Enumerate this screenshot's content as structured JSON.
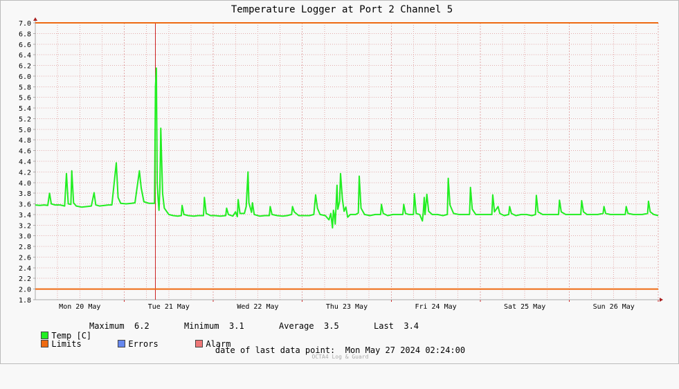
{
  "colors": {
    "temp": "#22ee22",
    "limits": "#ee6a11",
    "errors": "#6688ee",
    "alarm": "#ee7777",
    "grid": "#e2a9a9",
    "axis": "#aaaaaa",
    "marker": "#cc2222"
  },
  "legend": {
    "temp_label": "Temp [C]",
    "max_label": "Maximum",
    "max_value": "6.2",
    "min_label": "Minimum",
    "min_value": "3.1",
    "avg_label": "Average",
    "avg_value": "3.5",
    "last_label": "Last",
    "last_value": "3.4",
    "limits_label": "Limits",
    "errors_label": "Errors",
    "alarm_label": "Alarm"
  },
  "footer": {
    "last_point_label": "date of last data point:",
    "last_point_value": "Mon May 27 2024 02:24:00",
    "watermark": "OCTA4 Log & Guard"
  },
  "chart_data": {
    "type": "line",
    "title": "Temperature Logger at Port 2 Channel 5",
    "xlabel": "",
    "ylabel": "",
    "ylim": [
      1.8,
      7.0
    ],
    "y_ticks": [
      "1.8",
      "2.0",
      "2.2",
      "2.4",
      "2.6",
      "2.8",
      "3.0",
      "3.2",
      "3.4",
      "3.6",
      "3.8",
      "4.0",
      "4.2",
      "4.4",
      "4.6",
      "4.8",
      "5.0",
      "5.2",
      "5.4",
      "5.6",
      "5.8",
      "6.0",
      "6.2",
      "6.4",
      "6.6",
      "6.8",
      "7.0"
    ],
    "x_range_days": [
      0,
      7.0
    ],
    "x_tick_labels": [
      {
        "day": 0.5,
        "label": "Mon 20 May"
      },
      {
        "day": 1.5,
        "label": "Tue 21 May"
      },
      {
        "day": 2.5,
        "label": "Wed 22 May"
      },
      {
        "day": 3.5,
        "label": "Thu 23 May"
      },
      {
        "day": 4.5,
        "label": "Fri 24 May"
      },
      {
        "day": 5.5,
        "label": "Sat 25 May"
      },
      {
        "day": 6.5,
        "label": "Sun 26 May"
      }
    ],
    "grid": true,
    "limits": [
      2.0,
      7.0
    ],
    "marker_day": 1.35,
    "series": [
      {
        "name": "Temp [C]",
        "points": [
          [
            0.0,
            3.58
          ],
          [
            0.05,
            3.57
          ],
          [
            0.1,
            3.58
          ],
          [
            0.14,
            3.57
          ],
          [
            0.16,
            3.8
          ],
          [
            0.18,
            3.6
          ],
          [
            0.22,
            3.58
          ],
          [
            0.28,
            3.58
          ],
          [
            0.33,
            3.56
          ],
          [
            0.35,
            4.17
          ],
          [
            0.37,
            3.6
          ],
          [
            0.4,
            3.59
          ],
          [
            0.41,
            4.22
          ],
          [
            0.43,
            3.62
          ],
          [
            0.46,
            3.56
          ],
          [
            0.52,
            3.54
          ],
          [
            0.58,
            3.55
          ],
          [
            0.63,
            3.56
          ],
          [
            0.66,
            3.81
          ],
          [
            0.68,
            3.58
          ],
          [
            0.72,
            3.56
          ],
          [
            0.78,
            3.57
          ],
          [
            0.82,
            3.58
          ],
          [
            0.86,
            3.58
          ],
          [
            0.91,
            4.37
          ],
          [
            0.93,
            3.72
          ],
          [
            0.96,
            3.61
          ],
          [
            1.02,
            3.6
          ],
          [
            1.08,
            3.61
          ],
          [
            1.12,
            3.62
          ],
          [
            1.17,
            4.22
          ],
          [
            1.19,
            3.9
          ],
          [
            1.22,
            3.64
          ],
          [
            1.28,
            3.61
          ],
          [
            1.34,
            3.61
          ],
          [
            1.35,
            5.8
          ],
          [
            1.36,
            6.15
          ],
          [
            1.37,
            4.0
          ],
          [
            1.38,
            3.7
          ],
          [
            1.39,
            3.48
          ],
          [
            1.4,
            3.9
          ],
          [
            1.41,
            5.02
          ],
          [
            1.42,
            4.4
          ],
          [
            1.43,
            3.8
          ],
          [
            1.45,
            3.52
          ],
          [
            1.5,
            3.4
          ],
          [
            1.55,
            3.38
          ],
          [
            1.6,
            3.37
          ],
          [
            1.64,
            3.38
          ],
          [
            1.65,
            3.57
          ],
          [
            1.67,
            3.4
          ],
          [
            1.72,
            3.38
          ],
          [
            1.78,
            3.37
          ],
          [
            1.83,
            3.38
          ],
          [
            1.89,
            3.38
          ],
          [
            1.9,
            3.72
          ],
          [
            1.92,
            3.42
          ],
          [
            1.97,
            3.38
          ],
          [
            2.02,
            3.38
          ],
          [
            2.08,
            3.37
          ],
          [
            2.14,
            3.38
          ],
          [
            2.15,
            3.52
          ],
          [
            2.17,
            3.4
          ],
          [
            2.22,
            3.37
          ],
          [
            2.25,
            3.45
          ],
          [
            2.27,
            3.36
          ],
          [
            2.28,
            3.68
          ],
          [
            2.3,
            3.42
          ],
          [
            2.35,
            3.42
          ],
          [
            2.37,
            3.55
          ],
          [
            2.39,
            4.2
          ],
          [
            2.4,
            3.62
          ],
          [
            2.43,
            3.44
          ],
          [
            2.44,
            3.62
          ],
          [
            2.46,
            3.4
          ],
          [
            2.52,
            3.37
          ],
          [
            2.58,
            3.38
          ],
          [
            2.63,
            3.38
          ],
          [
            2.64,
            3.55
          ],
          [
            2.66,
            3.4
          ],
          [
            2.72,
            3.38
          ],
          [
            2.78,
            3.37
          ],
          [
            2.83,
            3.38
          ],
          [
            2.88,
            3.4
          ],
          [
            2.89,
            3.55
          ],
          [
            2.91,
            3.45
          ],
          [
            2.96,
            3.38
          ],
          [
            3.02,
            3.38
          ],
          [
            3.08,
            3.38
          ],
          [
            3.13,
            3.4
          ],
          [
            3.15,
            3.77
          ],
          [
            3.17,
            3.52
          ],
          [
            3.2,
            3.4
          ],
          [
            3.26,
            3.38
          ],
          [
            3.3,
            3.3
          ],
          [
            3.32,
            3.42
          ],
          [
            3.34,
            3.15
          ],
          [
            3.35,
            3.48
          ],
          [
            3.36,
            3.4
          ],
          [
            3.37,
            3.22
          ],
          [
            3.38,
            3.58
          ],
          [
            3.39,
            3.95
          ],
          [
            3.4,
            3.5
          ],
          [
            3.42,
            3.65
          ],
          [
            3.43,
            4.17
          ],
          [
            3.45,
            3.7
          ],
          [
            3.47,
            3.46
          ],
          [
            3.49,
            3.54
          ],
          [
            3.51,
            3.35
          ],
          [
            3.54,
            3.4
          ],
          [
            3.6,
            3.4
          ],
          [
            3.63,
            3.43
          ],
          [
            3.64,
            4.12
          ],
          [
            3.66,
            3.52
          ],
          [
            3.7,
            3.4
          ],
          [
            3.76,
            3.38
          ],
          [
            3.82,
            3.4
          ],
          [
            3.88,
            3.4
          ],
          [
            3.89,
            3.59
          ],
          [
            3.91,
            3.42
          ],
          [
            3.96,
            3.38
          ],
          [
            4.02,
            3.4
          ],
          [
            4.08,
            3.4
          ],
          [
            4.13,
            3.4
          ],
          [
            4.14,
            3.59
          ],
          [
            4.16,
            3.42
          ],
          [
            4.2,
            3.4
          ],
          [
            4.25,
            3.4
          ],
          [
            4.26,
            3.79
          ],
          [
            4.28,
            3.42
          ],
          [
            4.32,
            3.4
          ],
          [
            4.35,
            3.28
          ],
          [
            4.36,
            3.45
          ],
          [
            4.37,
            3.72
          ],
          [
            4.38,
            3.4
          ],
          [
            4.4,
            3.78
          ],
          [
            4.42,
            3.46
          ],
          [
            4.46,
            3.4
          ],
          [
            4.52,
            3.4
          ],
          [
            4.58,
            3.38
          ],
          [
            4.63,
            3.4
          ],
          [
            4.64,
            4.08
          ],
          [
            4.66,
            3.58
          ],
          [
            4.7,
            3.42
          ],
          [
            4.76,
            3.4
          ],
          [
            4.82,
            3.4
          ],
          [
            4.88,
            3.4
          ],
          [
            4.89,
            3.91
          ],
          [
            4.91,
            3.5
          ],
          [
            4.95,
            3.4
          ],
          [
            5.02,
            3.4
          ],
          [
            5.08,
            3.4
          ],
          [
            5.13,
            3.4
          ],
          [
            5.14,
            3.77
          ],
          [
            5.16,
            3.45
          ],
          [
            5.2,
            3.55
          ],
          [
            5.22,
            3.42
          ],
          [
            5.27,
            3.38
          ],
          [
            5.32,
            3.4
          ],
          [
            5.33,
            3.55
          ],
          [
            5.35,
            3.42
          ],
          [
            5.4,
            3.38
          ],
          [
            5.46,
            3.4
          ],
          [
            5.52,
            3.4
          ],
          [
            5.58,
            3.38
          ],
          [
            5.62,
            3.4
          ],
          [
            5.63,
            3.76
          ],
          [
            5.65,
            3.45
          ],
          [
            5.7,
            3.4
          ],
          [
            5.76,
            3.4
          ],
          [
            5.82,
            3.4
          ],
          [
            5.88,
            3.4
          ],
          [
            5.89,
            3.67
          ],
          [
            5.91,
            3.45
          ],
          [
            5.96,
            3.4
          ],
          [
            6.02,
            3.4
          ],
          [
            6.08,
            3.4
          ],
          [
            6.13,
            3.4
          ],
          [
            6.14,
            3.66
          ],
          [
            6.16,
            3.45
          ],
          [
            6.2,
            3.4
          ],
          [
            6.26,
            3.4
          ],
          [
            6.32,
            3.4
          ],
          [
            6.38,
            3.42
          ],
          [
            6.39,
            3.55
          ],
          [
            6.41,
            3.42
          ],
          [
            6.46,
            3.4
          ],
          [
            6.52,
            3.4
          ],
          [
            6.58,
            3.4
          ],
          [
            6.63,
            3.4
          ],
          [
            6.64,
            3.55
          ],
          [
            6.66,
            3.42
          ],
          [
            6.72,
            3.4
          ],
          [
            6.78,
            3.4
          ],
          [
            6.82,
            3.4
          ],
          [
            6.88,
            3.42
          ],
          [
            6.89,
            3.65
          ],
          [
            6.91,
            3.45
          ],
          [
            6.95,
            3.4
          ],
          [
            7.0,
            3.38
          ]
        ]
      }
    ]
  }
}
